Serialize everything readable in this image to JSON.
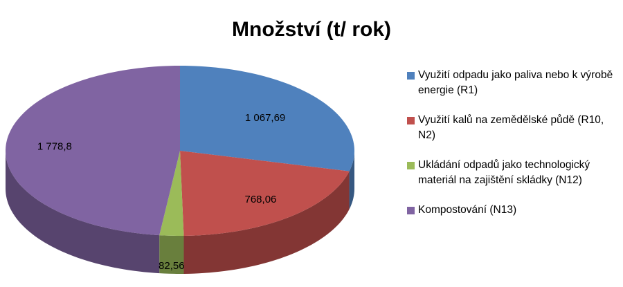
{
  "chart_data": {
    "type": "pie3d",
    "title": "Množství (t/ rok)",
    "categories": [
      "Využití odpadu jako paliva nebo k výrobě energie (R1)",
      "Využití kalů na zemědělské půdě (R10, N2)",
      "Ukládání odpadů jako technologický materiál na zajištění skládky (N12)",
      "Kompostování (N13)"
    ],
    "values": [
      1067.69,
      768.06,
      82.56,
      1778.8
    ],
    "value_labels": [
      "1 067,69",
      "768,06",
      "82,56",
      "1 778,8"
    ],
    "colors": [
      "#4f81bd",
      "#c0504d",
      "#9bbb59",
      "#8064a2"
    ],
    "legend": "right"
  }
}
